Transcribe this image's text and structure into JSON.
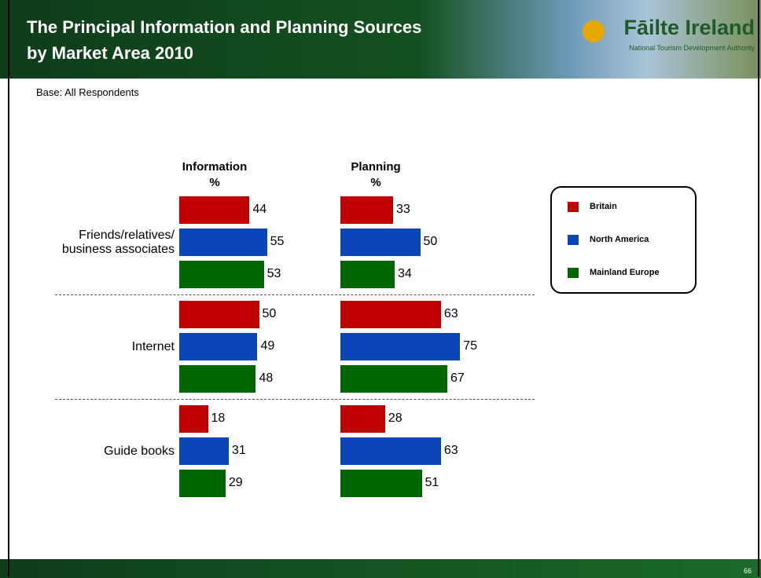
{
  "header": {
    "title_lines": [
      "The Principal Information and Planning Sources",
      "by Market Area 2010"
    ],
    "logo": "Fāilte Ireland",
    "logo_subtitle": "National Tourism Development Authority"
  },
  "base_note": "Base: All Respondents",
  "page_number": "66",
  "chart_data": {
    "type": "bar",
    "orientation": "horizontal",
    "categories": [
      "Friends/relatives/ business associates",
      "Internet",
      "Guide books"
    ],
    "series": [
      {
        "name": "Britain",
        "color": "#c00000"
      },
      {
        "name": "North America",
        "color": "#0a46b8"
      },
      {
        "name": "Mainland Europe",
        "color": "#006600"
      }
    ],
    "panels": [
      {
        "title": "Information",
        "unit": "%",
        "values": [
          [
            44,
            50,
            18
          ],
          [
            55,
            49,
            31
          ],
          [
            53,
            48,
            29
          ]
        ]
      },
      {
        "title": "Planning",
        "unit": "%",
        "values": [
          [
            33,
            63,
            28
          ],
          [
            50,
            75,
            63
          ],
          [
            34,
            67,
            51
          ]
        ]
      }
    ]
  }
}
